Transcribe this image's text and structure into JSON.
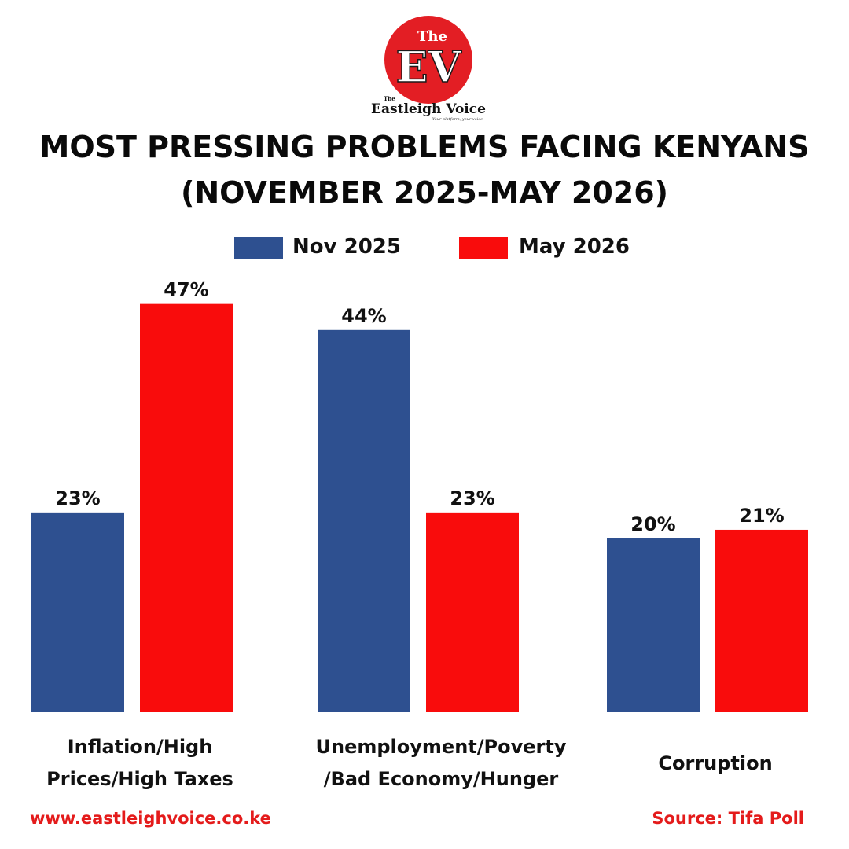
{
  "logo": {
    "top_word": "The",
    "monogram": "EV",
    "brand": "Eastleigh Voice",
    "brand_small": "The",
    "tagline": "Your platform, your voice"
  },
  "title_line1": "MOST PRESSING PROBLEMS FACING KENYANS",
  "title_line2": "(NOVEMBER 2025-MAY 2026)",
  "footer": {
    "website": "www.eastleighvoice.co.ke",
    "source": "Source: Tifa Poll"
  },
  "chart_data": {
    "type": "bar",
    "title": "MOST PRESSING PROBLEMS FACING KENYANS (NOVEMBER 2025-MAY 2026)",
    "categories": [
      "Inflation/High Prices/High Taxes",
      "Unemployment/Poverty /Bad Economy/Hunger",
      "Corruption"
    ],
    "category_lines": [
      [
        "Inflation/High",
        "Prices/High Taxes"
      ],
      [
        "Unemployment/Poverty",
        "/Bad Economy/Hunger"
      ],
      [
        "Corruption"
      ]
    ],
    "series": [
      {
        "name": "Nov 2025",
        "color": "#2e5090",
        "values": [
          23,
          44,
          20
        ],
        "labels": [
          "23%",
          "44%",
          "20%"
        ]
      },
      {
        "name": "May 2026",
        "color": "#f90c0c",
        "values": [
          47,
          23,
          21
        ],
        "labels": [
          "47%",
          "23%",
          "21%"
        ]
      }
    ],
    "legend_position": "top-center",
    "grid": false,
    "ylim": [
      0,
      50
    ]
  }
}
